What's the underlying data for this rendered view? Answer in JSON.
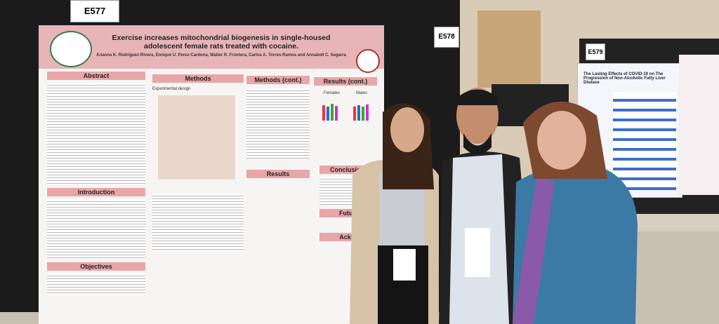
{
  "board_labels": [
    "E577",
    "E578",
    "E579"
  ],
  "poster": {
    "title": "Exercise increases mitochondrial biogenesis in single-housed adolescent female rats treated with cocaine.",
    "authors": "Arianna K. Rodriguez-Rivera, Enrique U. Perez-Cardona, Walter R. Frontera, Carlos A. Torres-Ramos and Annabell C. Segarra",
    "sections": {
      "abstract": "Abstract",
      "methods": "Methods",
      "methods_cont": "Methods (cont.)",
      "results_cont": "Results (cont.)",
      "introduction": "Introduction",
      "objectives": "Objectives",
      "results": "Results",
      "conclusions": "Conclusions",
      "future": "Future",
      "acknowledgements": "Ackno"
    },
    "figure_labels": {
      "design": "Experimental design",
      "females": "Females",
      "males": "Males"
    }
  },
  "neighbor_poster": {
    "title": "The Lasting Effects of COVID-19 on The Progression of Non-Alcoholic Fatty Liver Disease"
  }
}
